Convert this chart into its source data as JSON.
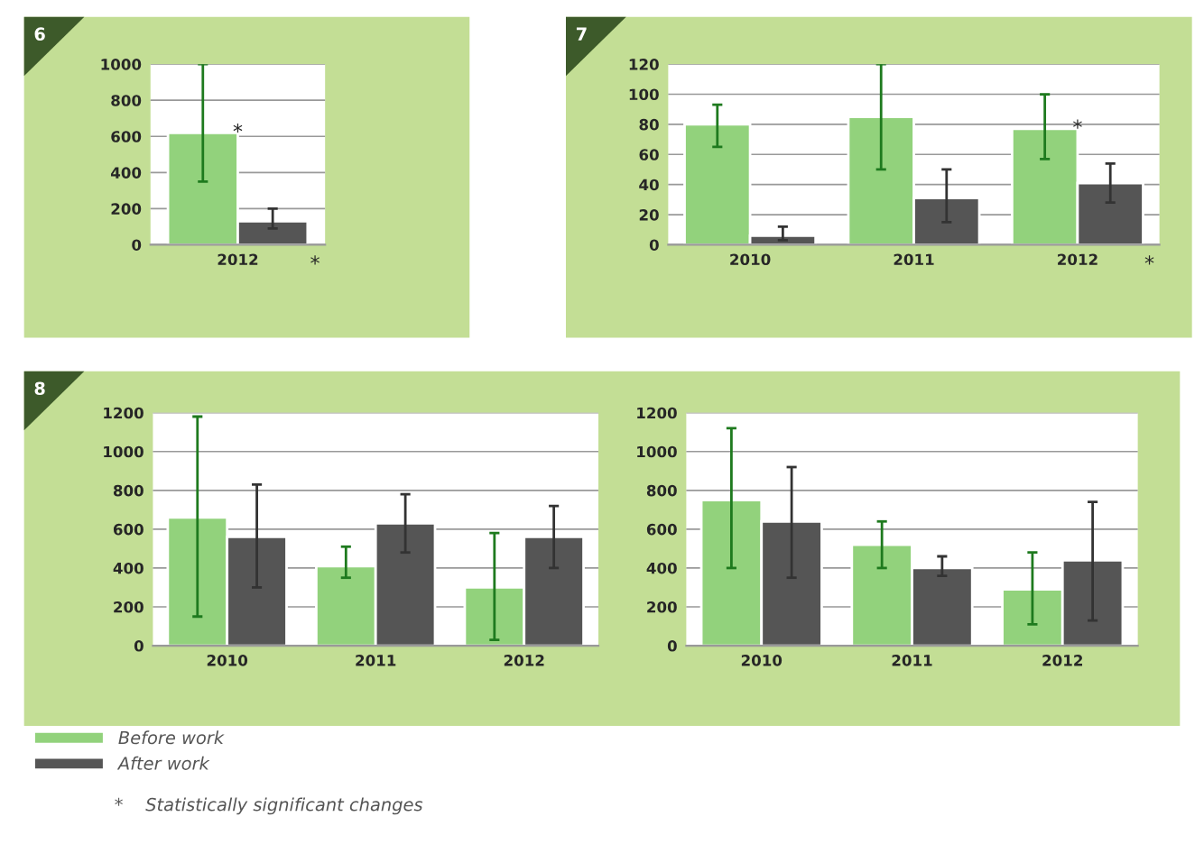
{
  "chart_data": [
    {
      "type": "bar",
      "title": "6",
      "categories": [
        "2012"
      ],
      "ylim": [
        0,
        1000
      ],
      "yticks": [
        0,
        200,
        400,
        600,
        800,
        1000
      ],
      "grid": "y",
      "legend": "bottom",
      "series": [
        {
          "name": "Before work",
          "color": "#92d27c",
          "values": [
            620
          ],
          "errors": [
            [
              350,
              1000
            ]
          ]
        },
        {
          "name": "After work",
          "color": "#555555",
          "values": [
            130
          ],
          "errors": [
            [
              90,
              200
            ]
          ]
        }
      ],
      "annotations": [
        {
          "text": "*",
          "x": "2012",
          "y": 620
        },
        "*",
        "*    Statistically significant changes"
      ]
    },
    {
      "type": "bar",
      "title": "7",
      "categories": [
        "2010",
        "2011",
        "2012"
      ],
      "ylim": [
        0,
        120
      ],
      "yticks": [
        0,
        20,
        40,
        60,
        80,
        100,
        120
      ],
      "grid": "y",
      "series": [
        {
          "color": "#92d27c",
          "values": [
            80,
            85,
            77
          ],
          "errors": [
            [
              65,
              93
            ],
            [
              50,
              120
            ],
            [
              57,
              100
            ]
          ]
        },
        {
          "color": "#555555",
          "values": [
            6,
            31,
            41
          ],
          "errors": [
            [
              3,
              12
            ],
            [
              15,
              50
            ],
            [
              28,
              54
            ]
          ]
        }
      ],
      "annotations": [
        {
          "text": "*",
          "x": "2012",
          "y": 77
        },
        "*"
      ]
    },
    {
      "type": "bar",
      "title": "8",
      "categories": [
        "2010",
        "2011",
        "2012"
      ],
      "ylim": [
        0,
        1200
      ],
      "yticks": [
        0,
        200,
        400,
        600,
        800,
        1000,
        1200
      ],
      "grid": "y",
      "series": [
        {
          "color": "#92d27c",
          "values": [
            660,
            410,
            300
          ],
          "errors": [
            [
              150,
              1180
            ],
            [
              350,
              510
            ],
            [
              30,
              580
            ]
          ]
        },
        {
          "color": "#555555",
          "values": [
            560,
            630,
            560
          ],
          "errors": [
            [
              300,
              830
            ],
            [
              480,
              780
            ],
            [
              400,
              720
            ]
          ]
        }
      ]
    },
    {
      "type": "bar",
      "categories": [
        "2010",
        "2011",
        "2012"
      ],
      "ylim": [
        0,
        1200
      ],
      "yticks": [
        0,
        200,
        400,
        600,
        800,
        1000,
        1200
      ],
      "grid": "y",
      "series": [
        {
          "color": "#92d27c",
          "values": [
            750,
            520,
            290
          ],
          "errors": [
            [
              400,
              1120
            ],
            [
              400,
              640
            ],
            [
              110,
              480
            ]
          ]
        },
        {
          "color": "#555555",
          "values": [
            640,
            400,
            440
          ],
          "errors": [
            [
              350,
              920
            ],
            [
              360,
              460
            ],
            [
              130,
              740
            ]
          ]
        }
      ]
    }
  ]
}
